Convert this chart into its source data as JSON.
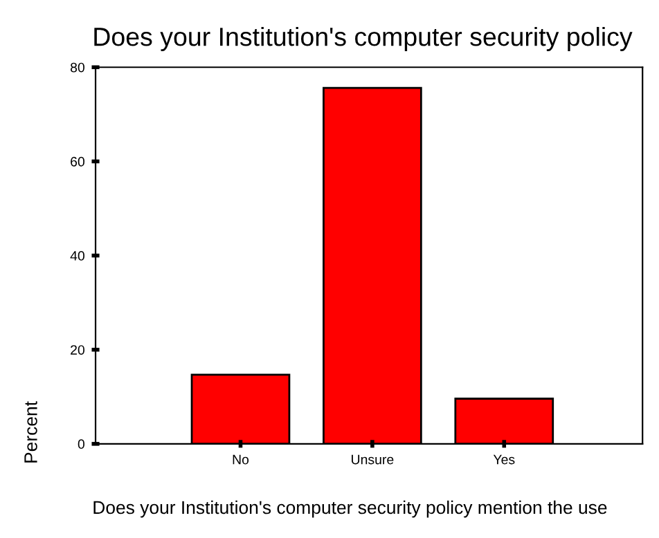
{
  "chart_data": {
    "type": "bar",
    "title": "Does your Institution's computer security policy",
    "xlabel": "Does your Institution's computer security policy mention the use",
    "ylabel": "Percent",
    "categories": [
      "No",
      "Unsure",
      "Yes"
    ],
    "values": [
      14.7,
      75.6,
      9.6
    ],
    "color": "#ff0000",
    "ylim": [
      0,
      80
    ],
    "yticks": [
      0,
      20,
      40,
      60,
      80
    ],
    "grid": false,
    "legend": false
  }
}
